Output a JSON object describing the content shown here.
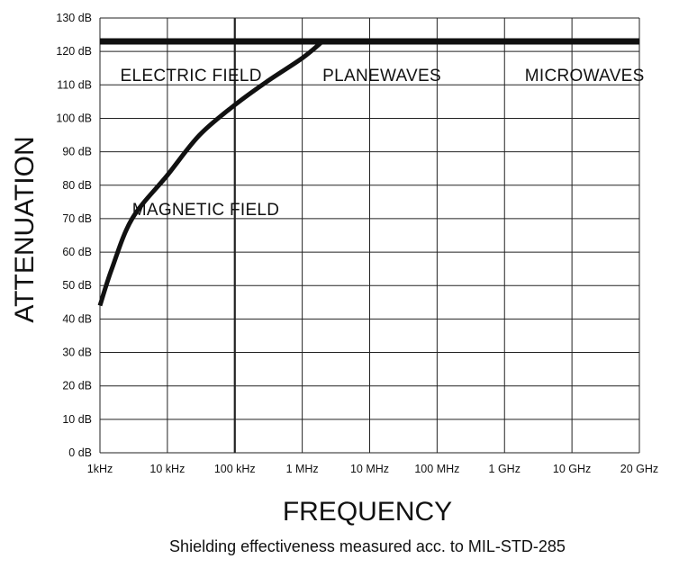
{
  "chart_data": {
    "type": "line",
    "xlabel": "FREQUENCY",
    "ylabel": "ATTENUATION",
    "caption": "Shielding effectiveness measured acc. to MIL-STD-285",
    "x_scale": "log",
    "x_ticks": [
      "1kHz",
      "10 kHz",
      "100 kHz",
      "1 MHz",
      "10 MHz",
      "100 MHz",
      "1 GHz",
      "10 GHz",
      "20 GHz"
    ],
    "y_ticks": [
      "0 dB",
      "10 dB",
      "20 dB",
      "30 dB",
      "40 dB",
      "50 dB",
      "60 dB",
      "70 dB",
      "80 dB",
      "90 dB",
      "100 dB",
      "110 dB",
      "120 dB",
      "130 dB"
    ],
    "ylim": [
      0,
      130
    ],
    "grid": true,
    "region_labels": [
      {
        "text": "ELECTRIC FIELD",
        "x": 2000,
        "y": 113
      },
      {
        "text": "PLANEWAVES",
        "x": 2000000,
        "y": 113
      },
      {
        "text": "MICROWAVES",
        "x": 2000000000,
        "y": 113
      },
      {
        "text": "MAGNETIC FIELD",
        "x": 3000,
        "y": 73
      }
    ],
    "series": [
      {
        "x": [
          1000,
          20000000000
        ],
        "y": [
          123,
          123
        ]
      },
      {
        "x": [
          1000,
          1500,
          3000,
          10000,
          30000,
          100000,
          300000,
          1000000,
          2000000
        ],
        "y": [
          44,
          55,
          70,
          83,
          95,
          104,
          111,
          118,
          123
        ]
      }
    ]
  }
}
